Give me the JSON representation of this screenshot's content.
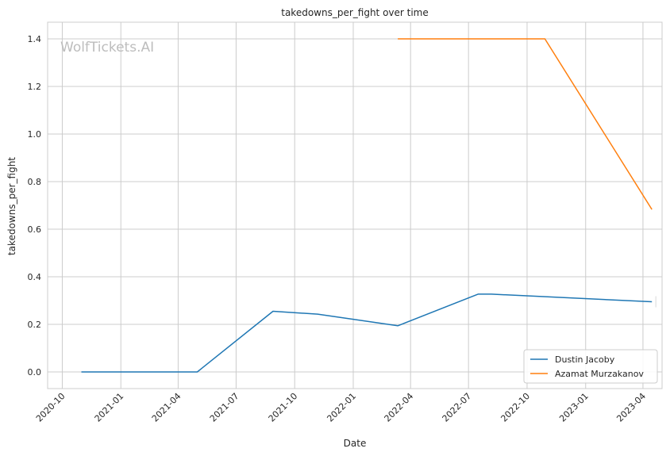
{
  "watermark": "WolfTickets.AI",
  "chart_data": {
    "type": "line",
    "title": "takedowns_per_fight over time",
    "xlabel": "Date",
    "ylabel": "takedowns_per_fight",
    "x_axis_type": "date",
    "xlim": [
      "2020-09-08",
      "2023-05-01"
    ],
    "ylim": [
      -0.07,
      1.47
    ],
    "x_ticks": [
      "2020-10",
      "2021-01",
      "2021-04",
      "2021-07",
      "2021-10",
      "2022-01",
      "2022-04",
      "2022-07",
      "2022-10",
      "2023-01",
      "2023-04"
    ],
    "y_ticks": [
      0.0,
      0.2,
      0.4,
      0.6,
      0.8,
      1.0,
      1.2,
      1.4
    ],
    "grid": true,
    "legend_position": "bottom-right",
    "series": [
      {
        "name": "Dustin Jacoby",
        "color": "#1f77b4",
        "points": [
          {
            "x": "2020-10-31",
            "y": 0.0
          },
          {
            "x": "2021-05-01",
            "y": 0.0
          },
          {
            "x": "2021-08-28",
            "y": 0.255
          },
          {
            "x": "2021-11-06",
            "y": 0.243
          },
          {
            "x": "2022-03-12",
            "y": 0.194
          },
          {
            "x": "2022-07-16",
            "y": 0.327
          },
          {
            "x": "2022-08-06",
            "y": 0.327
          },
          {
            "x": "2023-04-15",
            "y": 0.295
          }
        ]
      },
      {
        "name": "Azamat Murzakanov",
        "color": "#ff7f0e",
        "points": [
          {
            "x": "2022-03-12",
            "y": 1.4
          },
          {
            "x": "2022-10-29",
            "y": 1.4
          },
          {
            "x": "2023-04-15",
            "y": 0.683
          }
        ]
      }
    ]
  }
}
